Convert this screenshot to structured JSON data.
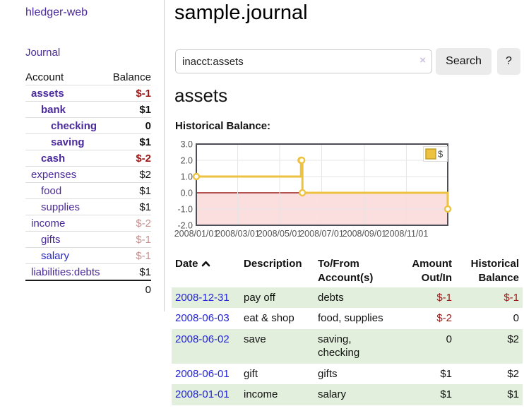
{
  "colors": {
    "purple_link": "#4b2a9b",
    "blue_link": "#2525d2",
    "negative": "#9a1616",
    "negative_muted": "#c68f8f",
    "row_stripe_green": "#e2efdc",
    "chart_line": "#EDC240",
    "chart_negative_fill": "#fbdede",
    "chart_zero_line": "#991b1b",
    "chart_grid": "#e6e6e6",
    "chart_border": "#4d4d55"
  },
  "sidebar": {
    "brand": "hledger-web",
    "journal_link": "Journal",
    "accounts": {
      "col_account": "Account",
      "col_balance": "Balance",
      "rows": [
        {
          "account": "assets",
          "balance": "$-1",
          "indent": 1,
          "bold": true,
          "balance_class": "neg"
        },
        {
          "account": "bank",
          "balance": "$1",
          "indent": 2,
          "bold": true,
          "balance_class": ""
        },
        {
          "account": "checking",
          "balance": "0",
          "indent": 3,
          "bold": true,
          "balance_class": ""
        },
        {
          "account": "saving",
          "balance": "$1",
          "indent": 3,
          "bold": true,
          "balance_class": ""
        },
        {
          "account": "cash",
          "balance": "$-2",
          "indent": 2,
          "bold": true,
          "balance_class": "neg"
        },
        {
          "account": "expenses",
          "balance": "$2",
          "indent": 1,
          "bold": false,
          "balance_class": ""
        },
        {
          "account": "food",
          "balance": "$1",
          "indent": 2,
          "bold": false,
          "balance_class": ""
        },
        {
          "account": "supplies",
          "balance": "$1",
          "indent": 2,
          "bold": false,
          "balance_class": ""
        },
        {
          "account": "income",
          "balance": "$-2",
          "indent": 1,
          "bold": false,
          "balance_class": "negmuted"
        },
        {
          "account": "gifts",
          "balance": "$-1",
          "indent": 2,
          "bold": false,
          "balance_class": "negmuted"
        },
        {
          "account": "salary",
          "balance": "$-1",
          "indent": 2,
          "bold": false,
          "balance_class": "negmuted",
          "link_variant": "blue"
        },
        {
          "account": "liabilities:debts",
          "balance": "$1",
          "indent": 1,
          "bold": false,
          "balance_class": ""
        }
      ],
      "total": "0"
    }
  },
  "main": {
    "title": "sample.journal",
    "search": {
      "value": "inacct:assets",
      "clear_label": "×",
      "button_label": "Search",
      "help_label": "?"
    },
    "heading": "assets",
    "chart_title": "Historical Balance:"
  },
  "chart_data": {
    "type": "line",
    "step": true,
    "title": "Historical Balance",
    "legend": [
      {
        "label": "$",
        "color": "#EDC240"
      }
    ],
    "legend_position": "top-right",
    "grid": true,
    "x_range": [
      "2008-01-01",
      "2008-12-31"
    ],
    "ylim": [
      -2,
      3
    ],
    "y_ticks": [
      3.0,
      2.0,
      1.0,
      0.0,
      -1.0,
      -2.0
    ],
    "x_ticks": [
      {
        "date": "2008-01-01",
        "label": "2008/01/01"
      },
      {
        "date": "2008-03-01",
        "label": "2008/03/01"
      },
      {
        "date": "2008-05-01",
        "label": "2008/05/01"
      },
      {
        "date": "2008-07-01",
        "label": "2008/07/01"
      },
      {
        "date": "2008-09-01",
        "label": "2008/09/01"
      },
      {
        "date": "2008-11-01",
        "label": "2008/11/01"
      }
    ],
    "series": [
      {
        "name": "$",
        "points": [
          {
            "date": "2008-01-01",
            "value": 1
          },
          {
            "date": "2008-06-01",
            "value": 2
          },
          {
            "date": "2008-06-02",
            "value": 2
          },
          {
            "date": "2008-06-03",
            "value": 0
          },
          {
            "date": "2008-12-31",
            "value": -1
          }
        ]
      }
    ]
  },
  "register": {
    "headers": {
      "date": "Date",
      "description": "Description",
      "accounts": "To/From Account(s)",
      "amount": "Amount Out/In",
      "balance": "Historical Balance"
    },
    "rows": [
      {
        "date": "2008-12-31",
        "description": "pay off",
        "accounts": "debts",
        "amount": "$-1",
        "balance": "$-1",
        "amount_class": "neg",
        "balance_class": "neg"
      },
      {
        "date": "2008-06-03",
        "description": "eat & shop",
        "accounts": "food, supplies",
        "amount": "$-2",
        "balance": "0",
        "amount_class": "neg",
        "balance_class": ""
      },
      {
        "date": "2008-06-02",
        "description": "save",
        "accounts": "saving, checking",
        "amount": "0",
        "balance": "$2",
        "amount_class": "",
        "balance_class": ""
      },
      {
        "date": "2008-06-01",
        "description": "gift",
        "accounts": "gifts",
        "amount": "$1",
        "balance": "$2",
        "amount_class": "",
        "balance_class": ""
      },
      {
        "date": "2008-01-01",
        "description": "income",
        "accounts": "salary",
        "amount": "$1",
        "balance": "$1",
        "amount_class": "",
        "balance_class": ""
      }
    ]
  }
}
